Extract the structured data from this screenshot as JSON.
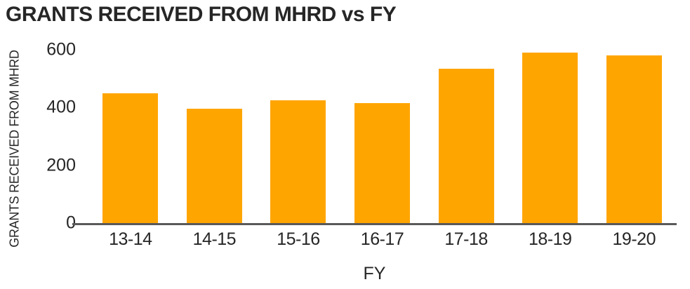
{
  "chart_data": {
    "type": "bar",
    "title": "GRANTS RECEIVED FROM MHRD vs FY",
    "xlabel": "FY",
    "ylabel": "GRANTS RECEIVED FROM MHRD",
    "categories": [
      "13-14",
      "14-15",
      "15-16",
      "16-17",
      "17-18",
      "18-19",
      "19-20"
    ],
    "values": [
      450,
      395,
      425,
      415,
      535,
      590,
      580
    ],
    "ylim": [
      0,
      600
    ],
    "yticks": [
      0,
      200,
      400,
      600
    ],
    "grid": false,
    "legend": "none",
    "bar_color": "#FFA500",
    "axis_line_color": "#595959",
    "text_color": "#262626",
    "background_color": "#FFFFFF"
  }
}
